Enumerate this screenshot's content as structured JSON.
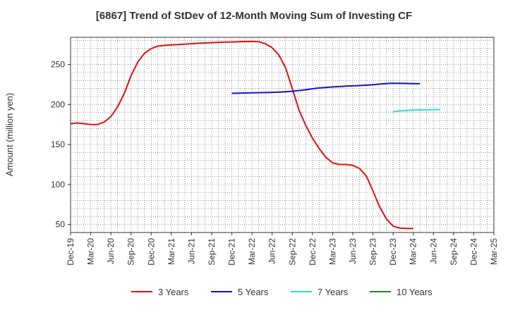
{
  "chart_data": {
    "type": "line",
    "title": "[6867]  Trend of StDev of 12-Month Moving Sum of Investing CF",
    "ylabel": "Amount (million yen)",
    "xlabel": "",
    "ylim": [
      40,
      284
    ],
    "yticks": [
      50,
      100,
      150,
      200,
      250
    ],
    "xticks": [
      "Dec-19",
      "Mar-20",
      "Jun-20",
      "Sep-20",
      "Dec-20",
      "Mar-21",
      "Jun-21",
      "Sep-21",
      "Dec-21",
      "Mar-22",
      "Jun-22",
      "Sep-22",
      "Dec-22",
      "Mar-23",
      "Jun-23",
      "Sep-23",
      "Dec-23",
      "Mar-24",
      "Jun-24",
      "Sep-24",
      "Dec-24",
      "Mar-25"
    ],
    "x_start": "Dec-19",
    "x_interval": "month",
    "grid": true,
    "legend_position": "bottom",
    "series": [
      {
        "name": "3 Years",
        "color": "#dd1111",
        "start": "Dec-19",
        "values": [
          176,
          177,
          176,
          175,
          175,
          178,
          185,
          197,
          214,
          236,
          253,
          264,
          270,
          273,
          274,
          274.5,
          275,
          275.5,
          276,
          276.5,
          277,
          277.3,
          277.7,
          278,
          278.2,
          278.5,
          278.7,
          278.8,
          278.5,
          276,
          271,
          262,
          246,
          220,
          193,
          174,
          158,
          145,
          134,
          127,
          125,
          125,
          124,
          120,
          111,
          92,
          72,
          57,
          48,
          45.5,
          45.2,
          45
        ]
      },
      {
        "name": "5 Years",
        "color": "#1111cc",
        "start": "Dec-21",
        "values": [
          214,
          214.2,
          214.4,
          214.6,
          214.8,
          215,
          215.2,
          215.5,
          216,
          216.6,
          217.5,
          218.5,
          219.7,
          220.7,
          221.4,
          222,
          222.5,
          223,
          223.3,
          223.7,
          224.2,
          224.8,
          225.5,
          226.2,
          226.5,
          226.5,
          226.3,
          226.1,
          226
        ]
      },
      {
        "name": "7 Years",
        "color": "#22dddd",
        "start": "Dec-23",
        "values": [
          191,
          192,
          192.5,
          193,
          193.2,
          193.4,
          193.5,
          193.7
        ]
      },
      {
        "name": "10 Years",
        "color": "#228822",
        "start": "Mar-24",
        "values": []
      }
    ]
  }
}
